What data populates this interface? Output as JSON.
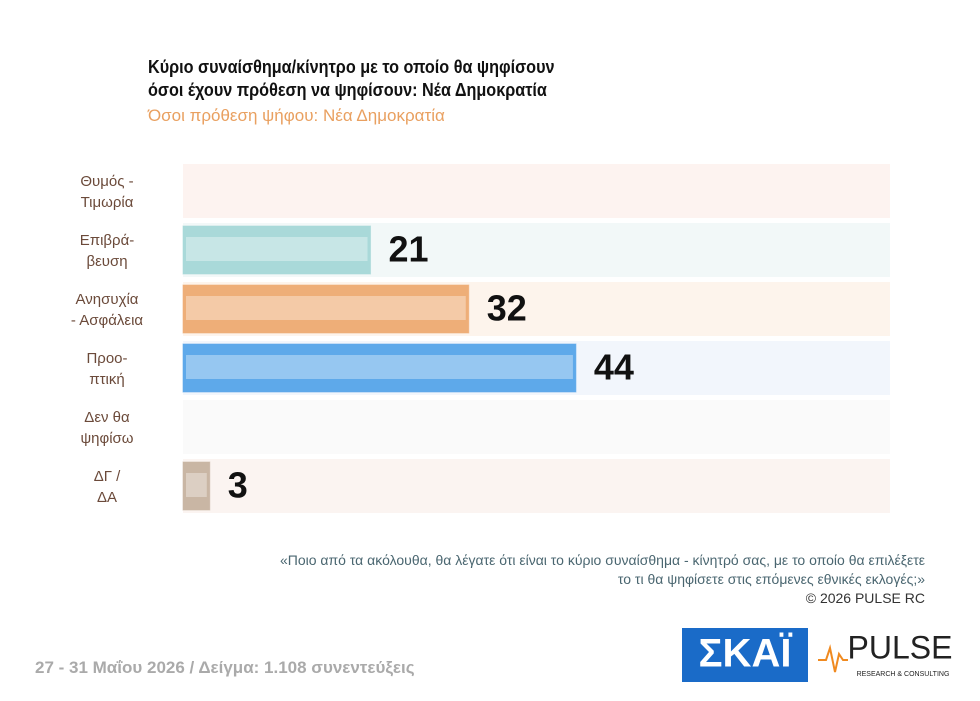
{
  "chart_data": {
    "type": "hbar",
    "title": "Κύριο συναίσθημα/κίνητρο με το οποίο θα ψηφίσουν\nόσοι έχουν πρόθεση να ψηφίσουν: Νέα Δημοκρατία",
    "subtitle": "Όσοι πρόθεση ψήφου: Νέα Δημοκρατία",
    "categories": [
      "Θυμός -\nΤιμωρία",
      "Επιβρά-\nβευση",
      "Ανησυχία\n- Ασφάλεια",
      "Προο-\nπτική",
      "Δεν θα\nψηφίσω",
      "ΔΓ /\nΔΑ"
    ],
    "values": [
      null,
      21,
      32,
      44,
      null,
      3
    ],
    "colors": [
      "#e8a898",
      "#a9d9d9",
      "#eeae78",
      "#5ea9ea",
      "#cccccc",
      "#c9b6a4"
    ],
    "question": "«Ποιο από τα ακόλουθα, θα λέγατε ότι είναι το κύριο συναίσθημα - κίνητρό σας, με το οποίο θα επιλέξετε\nτο τι θα ψηφίσετε στις επόμενες εθνικές εκλογές;»",
    "copyright": "©  2026  PULSE RC",
    "footer": "27 - 31  Μαΐου 2026  /  Δείγμα:  1.108 συνεντεύξεις",
    "logo_skai": "ΣΚΑΪ",
    "logo_pulse": "PULSE",
    "logo_pulse_sub": "RESEARCH & CONSULTING"
  }
}
